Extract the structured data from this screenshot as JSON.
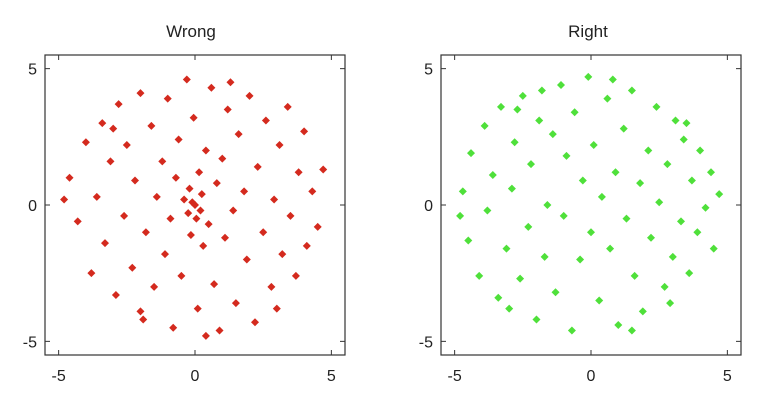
{
  "chart_data": [
    {
      "type": "scatter",
      "title": "Wrong",
      "xlabel": "",
      "ylabel": "",
      "xlim": [
        -5.5,
        5.5
      ],
      "ylim": [
        -5.5,
        5.5
      ],
      "xticks": [
        -5,
        0,
        5
      ],
      "yticks": [
        -5,
        0,
        5
      ],
      "xtick_labels": [
        "-5",
        "0",
        "5"
      ],
      "ytick_labels": [
        "-5",
        "0",
        "5"
      ],
      "grid": false,
      "marker": "diamond",
      "color": "#d42a1e",
      "series": [
        {
          "points": [
            [
              -4.6,
              1.0
            ],
            [
              -4.3,
              -0.6
            ],
            [
              -4.0,
              2.3
            ],
            [
              -3.8,
              -2.5
            ],
            [
              -3.6,
              0.3
            ],
            [
              -3.4,
              3.0
            ],
            [
              -3.3,
              -1.4
            ],
            [
              -3.1,
              1.6
            ],
            [
              -2.9,
              -3.3
            ],
            [
              -2.8,
              3.7
            ],
            [
              -2.6,
              -0.4
            ],
            [
              -2.5,
              2.2
            ],
            [
              -2.3,
              -2.3
            ],
            [
              -2.2,
              0.9
            ],
            [
              -2.0,
              4.1
            ],
            [
              -1.9,
              -4.2
            ],
            [
              -1.8,
              -1.0
            ],
            [
              -1.6,
              2.9
            ],
            [
              -1.5,
              -3.0
            ],
            [
              -1.4,
              0.3
            ],
            [
              -1.2,
              1.6
            ],
            [
              -1.1,
              -1.8
            ],
            [
              -1.0,
              3.9
            ],
            [
              -0.9,
              -0.5
            ],
            [
              -0.8,
              -4.5
            ],
            [
              -0.7,
              1.0
            ],
            [
              -0.6,
              2.4
            ],
            [
              -0.5,
              -2.6
            ],
            [
              -0.4,
              0.2
            ],
            [
              -0.3,
              4.6
            ],
            [
              -0.25,
              -0.3
            ],
            [
              -0.2,
              0.6
            ],
            [
              -0.15,
              -1.1
            ],
            [
              -0.1,
              0.1
            ],
            [
              -0.05,
              3.2
            ],
            [
              0.0,
              0.0
            ],
            [
              0.05,
              -0.5
            ],
            [
              0.1,
              -3.8
            ],
            [
              0.15,
              1.2
            ],
            [
              0.2,
              -0.2
            ],
            [
              0.25,
              0.4
            ],
            [
              0.3,
              -1.5
            ],
            [
              0.4,
              2.0
            ],
            [
              0.5,
              -0.7
            ],
            [
              0.6,
              4.3
            ],
            [
              0.7,
              -2.9
            ],
            [
              0.8,
              0.8
            ],
            [
              0.9,
              -4.6
            ],
            [
              1.0,
              1.7
            ],
            [
              1.1,
              -1.2
            ],
            [
              1.2,
              3.5
            ],
            [
              1.4,
              -0.2
            ],
            [
              1.5,
              -3.6
            ],
            [
              1.6,
              2.6
            ],
            [
              1.8,
              0.5
            ],
            [
              1.9,
              -2.0
            ],
            [
              2.0,
              4.0
            ],
            [
              2.2,
              -4.3
            ],
            [
              2.3,
              1.4
            ],
            [
              2.5,
              -1.0
            ],
            [
              2.6,
              3.1
            ],
            [
              2.8,
              -3.0
            ],
            [
              2.9,
              0.2
            ],
            [
              3.1,
              2.2
            ],
            [
              3.2,
              -1.8
            ],
            [
              3.4,
              3.6
            ],
            [
              3.5,
              -0.4
            ],
            [
              3.7,
              -2.6
            ],
            [
              3.8,
              1.2
            ],
            [
              4.0,
              2.7
            ],
            [
              4.1,
              -1.5
            ],
            [
              4.3,
              0.5
            ],
            [
              4.5,
              -0.8
            ],
            [
              4.7,
              1.3
            ],
            [
              -4.8,
              0.2
            ],
            [
              -2.0,
              -3.9
            ],
            [
              1.3,
              4.5
            ],
            [
              3.0,
              -3.8
            ],
            [
              -3.0,
              2.8
            ],
            [
              0.4,
              -4.8
            ]
          ]
        }
      ]
    },
    {
      "type": "scatter",
      "title": "Right",
      "xlabel": "",
      "ylabel": "",
      "xlim": [
        -5.5,
        5.5
      ],
      "ylim": [
        -5.5,
        5.5
      ],
      "xticks": [
        -5,
        0,
        5
      ],
      "yticks": [
        -5,
        0,
        5
      ],
      "xtick_labels": [
        "-5",
        "0",
        "5"
      ],
      "ytick_labels": [
        "-5",
        "0",
        "5"
      ],
      "grid": false,
      "marker": "diamond",
      "color": "#4fe03a",
      "series": [
        {
          "points": [
            [
              -4.7,
              0.5
            ],
            [
              -4.5,
              -1.3
            ],
            [
              -4.4,
              1.9
            ],
            [
              -4.1,
              -2.6
            ],
            [
              -3.9,
              2.9
            ],
            [
              -3.8,
              -0.2
            ],
            [
              -3.6,
              1.1
            ],
            [
              -3.4,
              -3.4
            ],
            [
              -3.3,
              3.6
            ],
            [
              -3.1,
              -1.6
            ],
            [
              -2.9,
              0.6
            ],
            [
              -2.8,
              2.3
            ],
            [
              -2.6,
              -2.7
            ],
            [
              -2.5,
              4.0
            ],
            [
              -2.3,
              -0.8
            ],
            [
              -2.2,
              1.5
            ],
            [
              -2.0,
              -4.2
            ],
            [
              -1.9,
              3.1
            ],
            [
              -1.7,
              -1.9
            ],
            [
              -1.6,
              0.0
            ],
            [
              -1.4,
              2.6
            ],
            [
              -1.3,
              -3.2
            ],
            [
              -1.1,
              4.4
            ],
            [
              -1.0,
              -0.4
            ],
            [
              -0.9,
              1.8
            ],
            [
              -0.7,
              -4.6
            ],
            [
              -0.6,
              3.4
            ],
            [
              -0.4,
              -2.0
            ],
            [
              -0.3,
              0.9
            ],
            [
              -0.1,
              4.7
            ],
            [
              0.0,
              -1.0
            ],
            [
              0.1,
              2.2
            ],
            [
              0.3,
              -3.5
            ],
            [
              0.4,
              0.3
            ],
            [
              0.6,
              3.9
            ],
            [
              0.7,
              -1.6
            ],
            [
              0.9,
              1.2
            ],
            [
              1.0,
              -4.4
            ],
            [
              1.2,
              2.8
            ],
            [
              1.3,
              -0.5
            ],
            [
              1.5,
              4.2
            ],
            [
              1.6,
              -2.6
            ],
            [
              1.8,
              0.8
            ],
            [
              1.9,
              -3.9
            ],
            [
              2.1,
              2.0
            ],
            [
              2.2,
              -1.2
            ],
            [
              2.4,
              3.6
            ],
            [
              2.5,
              0.1
            ],
            [
              2.7,
              -3.0
            ],
            [
              2.8,
              1.5
            ],
            [
              3.0,
              -1.9
            ],
            [
              3.1,
              3.1
            ],
            [
              3.3,
              -0.6
            ],
            [
              3.4,
              2.4
            ],
            [
              3.6,
              -2.5
            ],
            [
              3.7,
              0.9
            ],
            [
              3.9,
              -1.0
            ],
            [
              4.0,
              2.0
            ],
            [
              4.2,
              -0.1
            ],
            [
              4.4,
              1.2
            ],
            [
              4.5,
              -1.6
            ],
            [
              4.7,
              0.4
            ],
            [
              -4.8,
              -0.4
            ],
            [
              -3.0,
              -3.8
            ],
            [
              -1.8,
              4.2
            ],
            [
              0.8,
              4.6
            ],
            [
              2.9,
              -3.6
            ],
            [
              3.5,
              3.0
            ],
            [
              -2.7,
              3.5
            ],
            [
              1.5,
              -4.6
            ]
          ]
        }
      ]
    }
  ]
}
